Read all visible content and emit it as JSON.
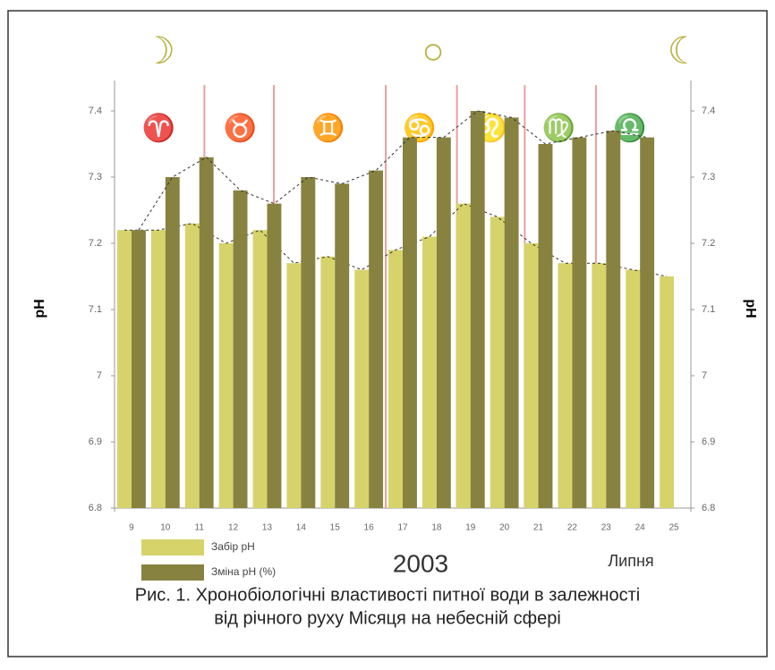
{
  "chart_data": {
    "type": "bar",
    "caption": [
      "Рис. 1. Хронобіологічні властивості питної води в залежності",
      "від річного руху Місяця на небесній сфері"
    ],
    "ylabel": "pH",
    "y2label": "pH",
    "year": "2003",
    "month": "Липня",
    "moon_phases": [
      "☽",
      "○",
      "☾"
    ],
    "zodiac": [
      "♈",
      "♉",
      "♊",
      "♋",
      "♌",
      "♍",
      "♎"
    ],
    "categories": [
      "9",
      "10",
      "11",
      "12",
      "13",
      "14",
      "15",
      "16",
      "17",
      "18",
      "19",
      "20",
      "21",
      "22",
      "23",
      "24",
      "25"
    ],
    "series": [
      {
        "name": "Забір pH",
        "color": "#d6d36a",
        "values": [
          7.22,
          7.22,
          7.23,
          7.2,
          7.22,
          7.17,
          7.18,
          7.16,
          7.19,
          7.21,
          7.26,
          7.24,
          7.2,
          7.17,
          7.17,
          7.16,
          7.15
        ]
      },
      {
        "name": "Зміна pH (%)",
        "color": "#878240",
        "values": [
          7.22,
          7.3,
          7.33,
          7.28,
          7.26,
          7.3,
          7.29,
          7.31,
          7.36,
          7.36,
          7.4,
          7.39,
          7.35,
          7.36,
          7.37,
          7.36,
          null
        ]
      }
    ],
    "ylim": [
      6.8,
      7.4
    ],
    "yticks": [
      6.8,
      6.9,
      7.0,
      7.1,
      7.2,
      7.3,
      7.4
    ],
    "y2lim": [
      6.8,
      7.4
    ],
    "y2ticks": [
      6.8,
      6.9,
      7.0,
      7.1,
      7.2,
      7.3,
      7.4
    ]
  }
}
